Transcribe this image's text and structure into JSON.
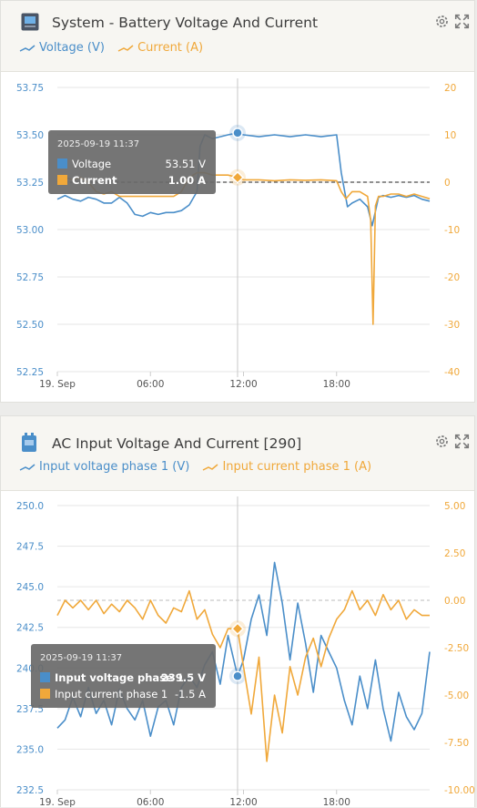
{
  "colors": {
    "voltage": "#4a8ec9",
    "current": "#f0a83a",
    "header_bg": "#f7f6f2"
  },
  "panels": [
    {
      "title": "System - Battery Voltage And Current",
      "icon": "battery-monitor-icon",
      "legend": [
        "Voltage (V)",
        "Current (A)"
      ],
      "tooltip": {
        "time": "2025-09-19 11:37",
        "rows": [
          {
            "label": "Voltage",
            "value": "53.51 V"
          },
          {
            "label": "Current",
            "value": "1.00 A"
          }
        ]
      }
    },
    {
      "title": "AC Input Voltage And Current [290]",
      "icon": "ac-input-icon",
      "legend": [
        "Input voltage phase 1 (V)",
        "Input current phase 1 (A)"
      ],
      "tooltip": {
        "time": "2025-09-19 11:37",
        "rows": [
          {
            "label": "Input voltage phase 1",
            "value": "239.5 V"
          },
          {
            "label": "Input current phase 1",
            "value": "-1.5 A"
          }
        ]
      }
    }
  ],
  "chart_data": [
    {
      "type": "line",
      "x_ticks": [
        "19. Sep",
        "06:00",
        "12:00",
        "18:00"
      ],
      "x_tick_hours": [
        0,
        6,
        12,
        18
      ],
      "x_range_hours": [
        0,
        24
      ],
      "y_left": {
        "ticks": [
          "53.75",
          "53.50",
          "53.25",
          "53.00",
          "52.75",
          "52.50",
          "52.25"
        ],
        "range": [
          52.25,
          53.75
        ]
      },
      "y_right": {
        "ticks": [
          "20",
          "10",
          "0",
          "-10",
          "-20",
          "-30",
          "-40"
        ],
        "range": [
          -40,
          20
        ]
      },
      "zero_line_right": 0,
      "crosshair_hour": 11.617,
      "series": [
        {
          "name": "Voltage (V)",
          "axis": "left",
          "color": "#4a8ec9",
          "points": [
            [
              0,
              53.16
            ],
            [
              0.5,
              53.18
            ],
            [
              1,
              53.16
            ],
            [
              1.5,
              53.15
            ],
            [
              2,
              53.17
            ],
            [
              2.5,
              53.16
            ],
            [
              3,
              53.14
            ],
            [
              3.5,
              53.14
            ],
            [
              4,
              53.17
            ],
            [
              4.5,
              53.14
            ],
            [
              5,
              53.08
            ],
            [
              5.5,
              53.07
            ],
            [
              6,
              53.09
            ],
            [
              6.5,
              53.08
            ],
            [
              7,
              53.09
            ],
            [
              7.5,
              53.09
            ],
            [
              8,
              53.1
            ],
            [
              8.5,
              53.13
            ],
            [
              9,
              53.2
            ],
            [
              9.2,
              53.44
            ],
            [
              9.5,
              53.5
            ],
            [
              10,
              53.48
            ],
            [
              10.5,
              53.49
            ],
            [
              11,
              53.5
            ],
            [
              11.617,
              53.51
            ],
            [
              12,
              53.5
            ],
            [
              13,
              53.49
            ],
            [
              14,
              53.5
            ],
            [
              15,
              53.49
            ],
            [
              16,
              53.5
            ],
            [
              17,
              53.49
            ],
            [
              18,
              53.5
            ],
            [
              18.3,
              53.3
            ],
            [
              18.7,
              53.12
            ],
            [
              19,
              53.14
            ],
            [
              19.5,
              53.16
            ],
            [
              20,
              53.12
            ],
            [
              20.3,
              53.02
            ],
            [
              20.7,
              53.17
            ],
            [
              21,
              53.18
            ],
            [
              21.5,
              53.17
            ],
            [
              22,
              53.18
            ],
            [
              22.5,
              53.17
            ],
            [
              23,
              53.18
            ],
            [
              23.5,
              53.16
            ],
            [
              24,
              53.15
            ]
          ]
        },
        {
          "name": "Current (A)",
          "axis": "right",
          "color": "#f0a83a",
          "points": [
            [
              0,
              0
            ],
            [
              0.5,
              1
            ],
            [
              1,
              0.5
            ],
            [
              1.5,
              1
            ],
            [
              2,
              0
            ],
            [
              2.5,
              -2
            ],
            [
              3,
              -2.5
            ],
            [
              3.5,
              -2
            ],
            [
              4,
              -3
            ],
            [
              4.5,
              -3
            ],
            [
              5,
              -3
            ],
            [
              5.5,
              -3
            ],
            [
              6,
              -3
            ],
            [
              6.5,
              -3
            ],
            [
              7,
              -3
            ],
            [
              7.5,
              -3
            ],
            [
              8,
              -2
            ],
            [
              8.5,
              1
            ],
            [
              9,
              2
            ],
            [
              9.5,
              2
            ],
            [
              10,
              1.5
            ],
            [
              11,
              1.5
            ],
            [
              11.617,
              1
            ],
            [
              12,
              0.5
            ],
            [
              13,
              0.5
            ],
            [
              14,
              0.3
            ],
            [
              15,
              0.5
            ],
            [
              16,
              0.4
            ],
            [
              17,
              0.5
            ],
            [
              18,
              0.3
            ],
            [
              18.3,
              -2
            ],
            [
              18.6,
              -3.5
            ],
            [
              19,
              -2
            ],
            [
              19.5,
              -2
            ],
            [
              20,
              -3
            ],
            [
              20.2,
              -8
            ],
            [
              20.35,
              -30
            ],
            [
              20.5,
              -5
            ],
            [
              20.7,
              -3
            ],
            [
              21,
              -3
            ],
            [
              21.5,
              -2.5
            ],
            [
              22,
              -2.5
            ],
            [
              22.5,
              -3
            ],
            [
              23,
              -2.5
            ],
            [
              23.5,
              -3
            ],
            [
              24,
              -3.5
            ]
          ]
        }
      ]
    },
    {
      "type": "line",
      "x_ticks": [
        "19. Sep",
        "06:00",
        "12:00",
        "18:00"
      ],
      "x_tick_hours": [
        0,
        6,
        12,
        18
      ],
      "x_range_hours": [
        0,
        24
      ],
      "y_left": {
        "ticks": [
          "250.0",
          "247.5",
          "245.0",
          "242.5",
          "240.0",
          "237.5",
          "235.0",
          "232.5"
        ],
        "range": [
          232.5,
          250
        ]
      },
      "y_right": {
        "ticks": [
          "5.00",
          "2.50",
          "0.00",
          "-2.50",
          "-5.00",
          "-7.50",
          "-10.00"
        ],
        "range": [
          -10,
          5
        ]
      },
      "zero_line_right": 0,
      "crosshair_hour": 11.617,
      "series": [
        {
          "name": "Input voltage phase 1 (V)",
          "axis": "left",
          "color": "#4a8ec9",
          "points": [
            [
              0,
              236.3
            ],
            [
              0.5,
              236.8
            ],
            [
              1,
              238.2
            ],
            [
              1.5,
              237.0
            ],
            [
              2,
              238.8
            ],
            [
              2.5,
              237.2
            ],
            [
              3,
              238.0
            ],
            [
              3.5,
              236.5
            ],
            [
              4,
              238.7
            ],
            [
              4.5,
              237.5
            ],
            [
              5,
              236.8
            ],
            [
              5.5,
              238.0
            ],
            [
              6,
              235.8
            ],
            [
              6.5,
              237.6
            ],
            [
              7,
              238.0
            ],
            [
              7.5,
              236.5
            ],
            [
              8,
              238.8
            ],
            [
              8.5,
              239.5
            ],
            [
              9,
              238.8
            ],
            [
              9.5,
              240.2
            ],
            [
              10,
              241.0
            ],
            [
              10.5,
              239.0
            ],
            [
              11,
              242.0
            ],
            [
              11.617,
              239.5
            ],
            [
              12,
              240.5
            ],
            [
              12.5,
              243.0
            ],
            [
              13,
              244.5
            ],
            [
              13.5,
              242.0
            ],
            [
              14,
              246.5
            ],
            [
              14.5,
              244.0
            ],
            [
              15,
              240.5
            ],
            [
              15.5,
              244.0
            ],
            [
              16,
              241.5
            ],
            [
              16.5,
              238.5
            ],
            [
              17,
              242.0
            ],
            [
              17.5,
              241.0
            ],
            [
              18,
              240.0
            ],
            [
              18.5,
              238.0
            ],
            [
              19,
              236.5
            ],
            [
              19.5,
              239.5
            ],
            [
              20,
              237.5
            ],
            [
              20.5,
              240.5
            ],
            [
              21,
              237.5
            ],
            [
              21.5,
              235.5
            ],
            [
              22,
              238.5
            ],
            [
              22.5,
              237.0
            ],
            [
              23,
              236.2
            ],
            [
              23.5,
              237.2
            ],
            [
              24,
              241.0
            ]
          ]
        },
        {
          "name": "Input current phase 1 (A)",
          "axis": "right",
          "color": "#f0a83a",
          "points": [
            [
              0,
              -0.8
            ],
            [
              0.5,
              0.0
            ],
            [
              1,
              -0.4
            ],
            [
              1.5,
              0.0
            ],
            [
              2,
              -0.5
            ],
            [
              2.5,
              0.0
            ],
            [
              3,
              -0.7
            ],
            [
              3.5,
              -0.2
            ],
            [
              4,
              -0.6
            ],
            [
              4.5,
              0.0
            ],
            [
              5,
              -0.4
            ],
            [
              5.5,
              -1.0
            ],
            [
              6,
              0.0
            ],
            [
              6.5,
              -0.8
            ],
            [
              7,
              -1.2
            ],
            [
              7.5,
              -0.4
            ],
            [
              8,
              -0.6
            ],
            [
              8.5,
              0.5
            ],
            [
              9,
              -1.0
            ],
            [
              9.5,
              -0.5
            ],
            [
              10,
              -1.8
            ],
            [
              10.5,
              -2.5
            ],
            [
              11,
              -1.5
            ],
            [
              11.617,
              -1.5
            ],
            [
              12,
              -3.5
            ],
            [
              12.5,
              -6.0
            ],
            [
              13,
              -3.0
            ],
            [
              13.5,
              -8.5
            ],
            [
              14,
              -5.0
            ],
            [
              14.5,
              -7.0
            ],
            [
              15,
              -3.5
            ],
            [
              15.5,
              -5.0
            ],
            [
              16,
              -3.0
            ],
            [
              16.5,
              -2.0
            ],
            [
              17,
              -3.5
            ],
            [
              17.5,
              -2.0
            ],
            [
              18,
              -1.0
            ],
            [
              18.5,
              -0.5
            ],
            [
              19,
              0.5
            ],
            [
              19.5,
              -0.5
            ],
            [
              20,
              0.0
            ],
            [
              20.5,
              -0.8
            ],
            [
              21,
              0.3
            ],
            [
              21.5,
              -0.5
            ],
            [
              22,
              0.0
            ],
            [
              22.5,
              -1.0
            ],
            [
              23,
              -0.5
            ],
            [
              23.5,
              -0.8
            ],
            [
              24,
              -0.8
            ]
          ]
        }
      ]
    }
  ]
}
